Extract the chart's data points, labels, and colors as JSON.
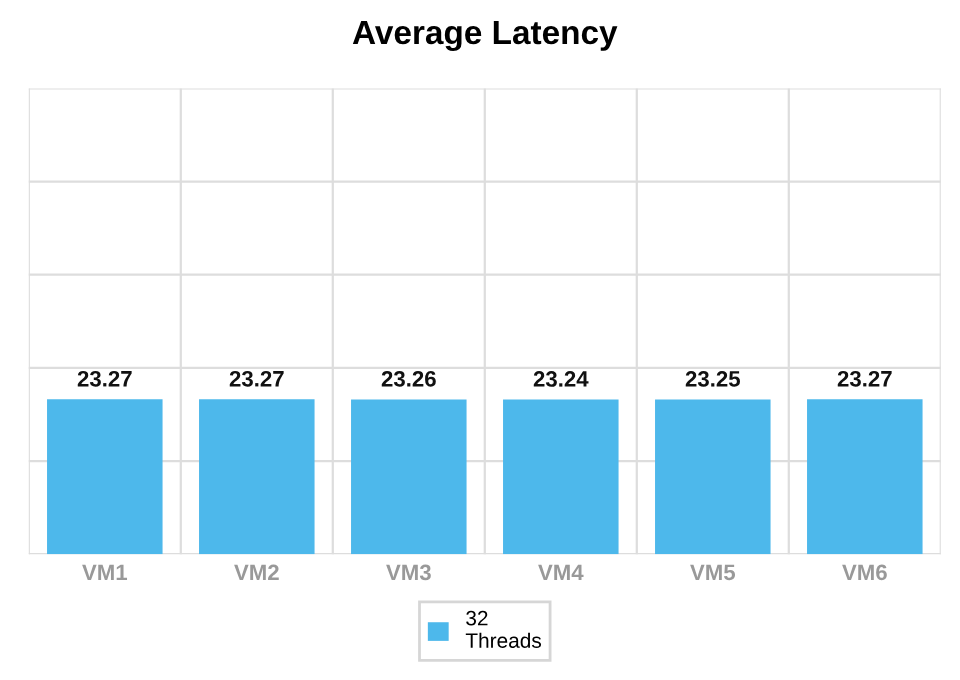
{
  "chart_data": {
    "type": "bar",
    "title": "Average Latency",
    "categories": [
      "VM1",
      "VM2",
      "VM3",
      "VM4",
      "VM5",
      "VM6"
    ],
    "series": [
      {
        "name": "32\nThreads",
        "color": "#4db8eb",
        "values": [
          23.27,
          23.27,
          23.26,
          23.24,
          23.25,
          23.27
        ]
      }
    ],
    "ylim": [
      0,
      70
    ],
    "yticks": [
      {
        "value": 0,
        "label": null
      },
      {
        "value": 14,
        "label": null
      },
      {
        "value": 28,
        "label": null
      },
      {
        "value": 42,
        "label": null
      },
      {
        "value": 56,
        "label": null
      },
      {
        "value": 70,
        "label": null
      }
    ],
    "tick_labels": "x",
    "grid": true,
    "data_labels": true,
    "legend": "bottom"
  }
}
